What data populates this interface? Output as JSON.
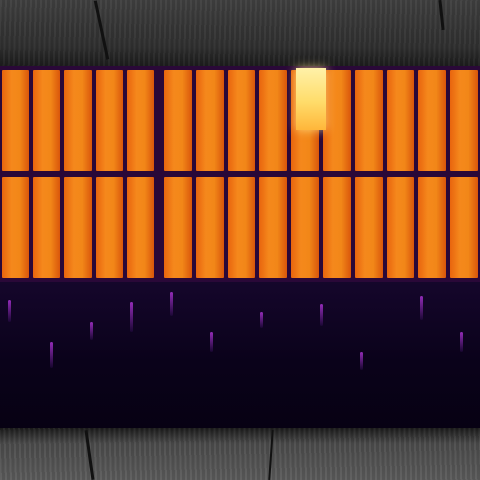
{
  "image": {
    "subject": "",
    "palette": {
      "panel_hot": "#f5881c",
      "panel_edge": "#d9560b",
      "hotspot": "#ffdc6a",
      "frame": "#2a0838",
      "shadow": "#0a021a",
      "vegetation": "#aa32d2",
      "ground": "#3f3f3f"
    },
    "strings": [
      {
        "cells": 5
      },
      {
        "cells": 10
      }
    ],
    "hotspot_cell": {
      "string": 2,
      "cell": 5,
      "half": "top"
    }
  }
}
